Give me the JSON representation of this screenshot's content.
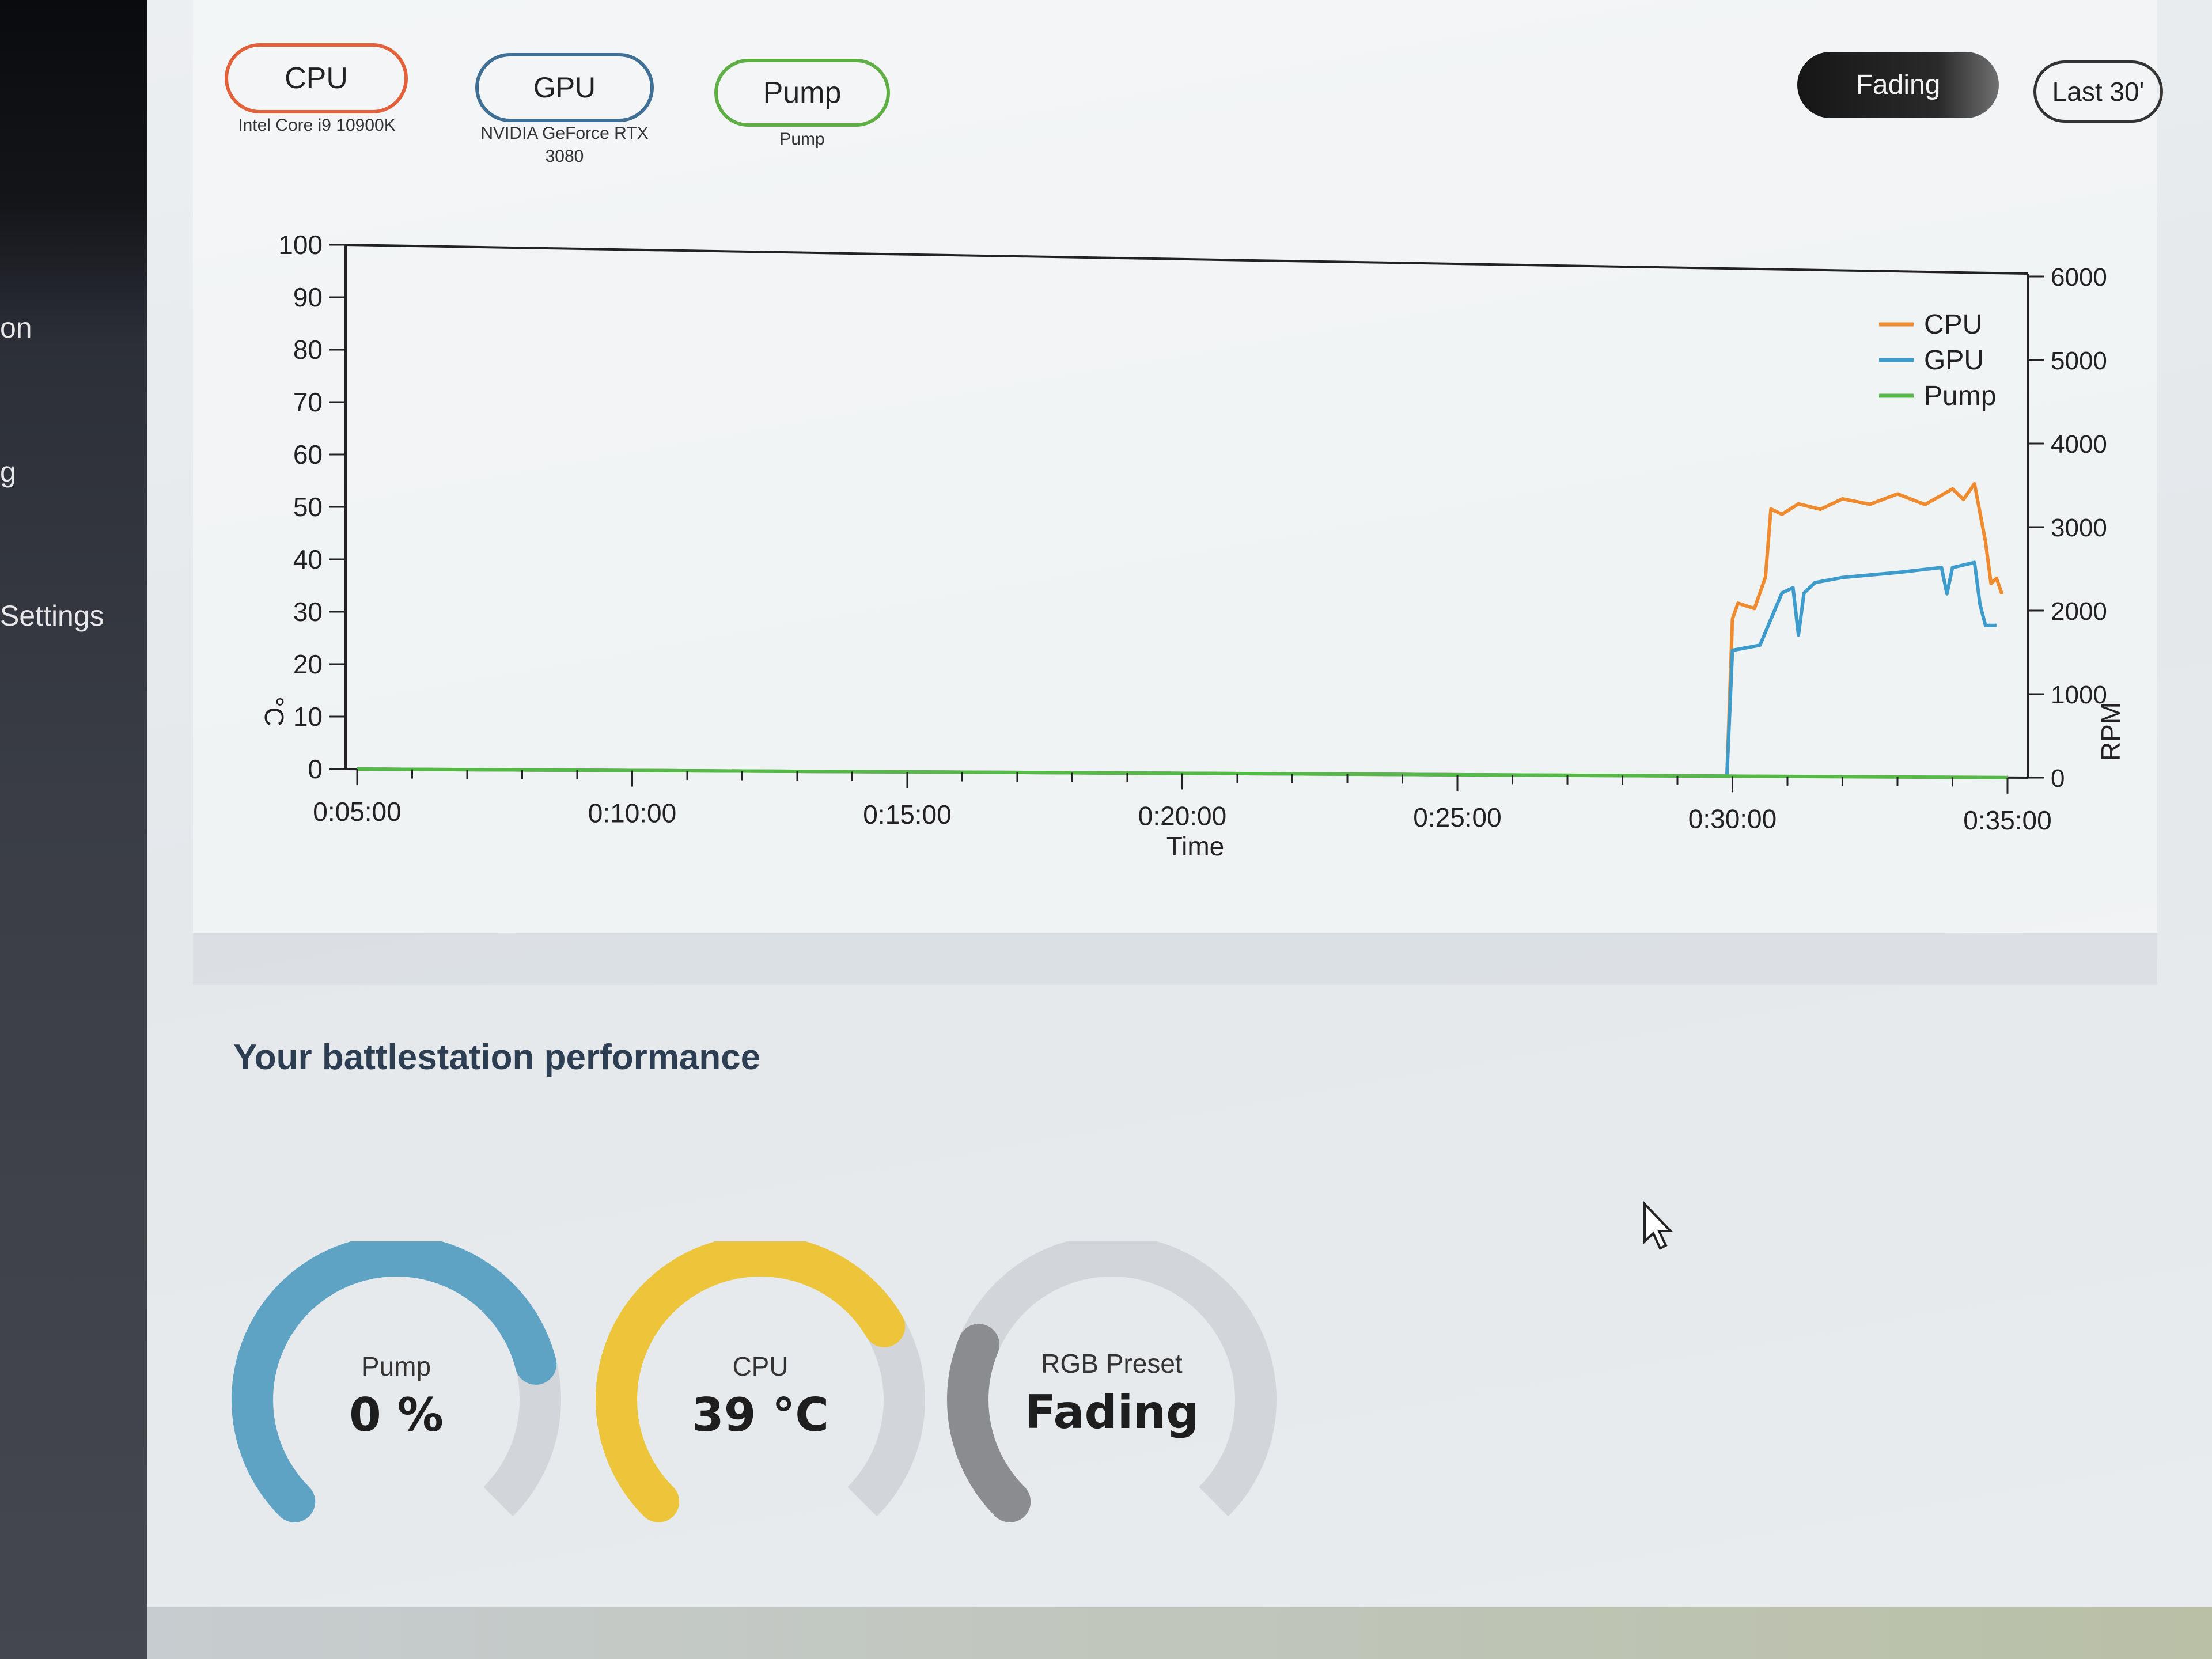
{
  "sidebar": {
    "items": [
      {
        "label": "on"
      },
      {
        "label": "g"
      },
      {
        "label": "Settings"
      }
    ]
  },
  "devices": [
    {
      "label": "CPU",
      "sublabel": "Intel Core i9 10900K",
      "color": "#e2613a"
    },
    {
      "label": "GPU",
      "sublabel": "NVIDIA GeForce RTX 3080",
      "color": "#3f6f95"
    },
    {
      "label": "Pump",
      "sublabel": "Pump",
      "color": "#5fae45"
    }
  ],
  "toolbar": {
    "preset_label": "Fading",
    "range_label": "Last 30'"
  },
  "chart_data": {
    "type": "line",
    "xlabel": "Time",
    "ylabel": "°C",
    "y2label": "RPM",
    "ylim": [
      0,
      100
    ],
    "y2lim": [
      0,
      6000
    ],
    "yticks": [
      "0",
      "10",
      "20",
      "30",
      "40",
      "50",
      "60",
      "70",
      "80",
      "90",
      "100"
    ],
    "y2ticks": [
      "0",
      "1000",
      "2000",
      "3000",
      "4000",
      "5000",
      "6000"
    ],
    "xticks": [
      "0:05:00",
      "0:10:00",
      "0:15:00",
      "0:20:00",
      "0:25:00",
      "0:30:00",
      "0:35:00"
    ],
    "xlim_minutes": [
      5,
      35
    ],
    "legend": "top-right",
    "grid": false,
    "series": [
      {
        "name": "CPU",
        "color": "#f08a2e",
        "axis": "left",
        "x_minutes": [
          5,
          29.9,
          30.0,
          30.1,
          30.4,
          30.6,
          30.7,
          30.9,
          31.2,
          31.6,
          32.0,
          32.5,
          33.0,
          33.5,
          34.0,
          34.2,
          34.4,
          34.6,
          34.7,
          34.8,
          34.9
        ],
        "values": [
          0,
          0,
          30,
          33,
          32,
          38,
          51,
          50,
          52,
          51,
          53,
          52,
          54,
          52,
          55,
          53,
          56,
          45,
          37,
          38,
          35
        ]
      },
      {
        "name": "GPU",
        "color": "#3d9ccc",
        "axis": "left",
        "x_minutes": [
          5,
          29.9,
          30.0,
          30.5,
          30.7,
          30.9,
          31.1,
          31.2,
          31.3,
          31.5,
          32.0,
          33.0,
          33.8,
          33.9,
          34.0,
          34.4,
          34.5,
          34.6,
          34.8
        ],
        "values": [
          0,
          0,
          24,
          25,
          30,
          35,
          36,
          27,
          35,
          37,
          38,
          39,
          40,
          35,
          40,
          41,
          33,
          29,
          29
        ]
      },
      {
        "name": "Pump",
        "color": "#55b847",
        "axis": "left",
        "x_minutes": [
          5,
          35
        ],
        "values": [
          0,
          0
        ]
      }
    ]
  },
  "performance": {
    "title": "Your battlestation performance",
    "gauges": [
      {
        "label": "Pump",
        "value": "0 %",
        "fill": 0.78,
        "color": "#5fa3c4"
      },
      {
        "label": "CPU",
        "value": "39 °C",
        "fill": 0.72,
        "color": "#ecc53a"
      },
      {
        "label": "RGB Preset",
        "value": "Fading",
        "fill": 0.25,
        "color": "#8a8c90"
      }
    ]
  }
}
